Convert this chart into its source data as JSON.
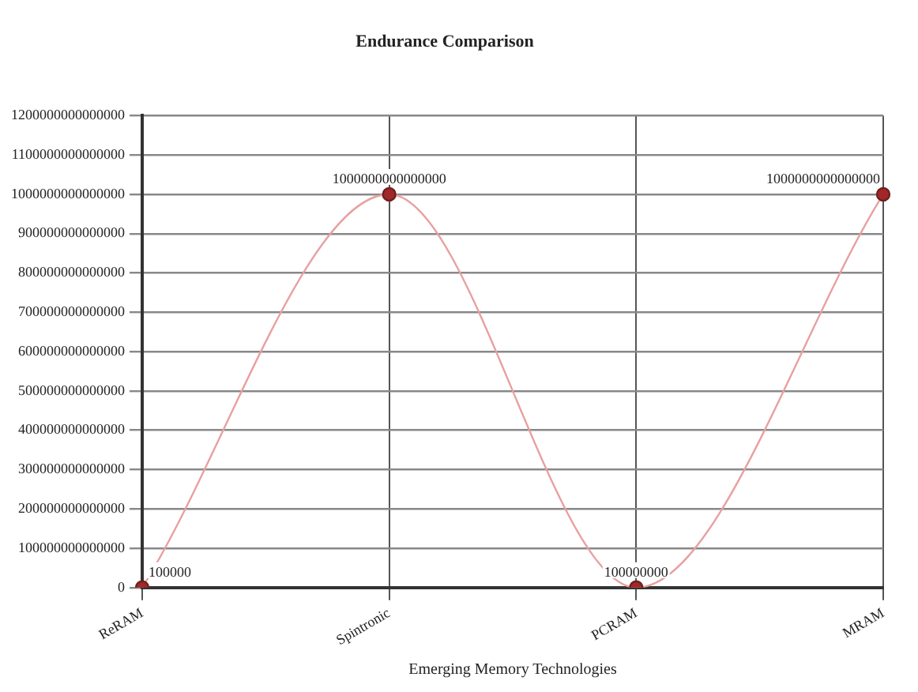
{
  "chart_data": {
    "type": "line",
    "title": "Endurance Comparison",
    "xlabel": "Emerging Memory Technologies",
    "categories": [
      "ReRAM",
      "Spintronic",
      "PCRAM",
      "MRAM"
    ],
    "series": [
      {
        "color": "#e8a0a0",
        "values": [
          100000,
          1000000000000000,
          100000000,
          1000000000000000
        ]
      }
    ],
    "ylim": [
      0,
      1200000000000000
    ],
    "yticks": [
      0,
      100000000000000,
      200000000000000,
      300000000000000,
      400000000000000,
      500000000000000,
      600000000000000,
      700000000000000,
      800000000000000,
      900000000000000,
      1000000000000000,
      1100000000000000,
      1200000000000000
    ],
    "grid": true,
    "legend": false,
    "marker": "circle",
    "line_style": "solid",
    "data_labels": true
  }
}
